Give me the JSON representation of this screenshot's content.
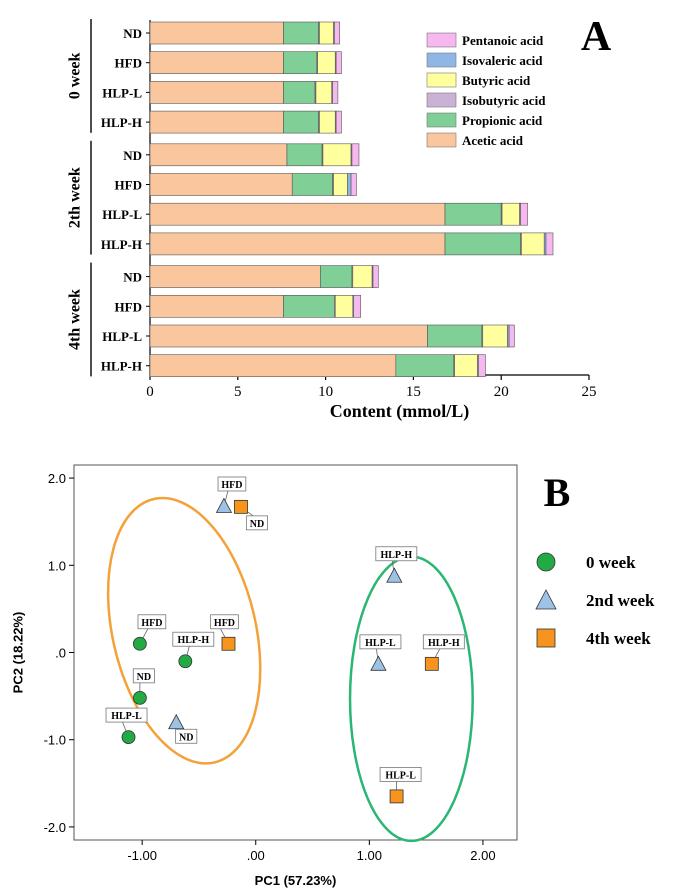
{
  "chart_data": [
    {
      "type": "bar",
      "panel_label": "A",
      "orientation": "horizontal",
      "stacked": true,
      "xlabel": "Content (mmol/L)",
      "xlim": [
        0,
        25
      ],
      "xticks": [
        0,
        5,
        10,
        15,
        20,
        25
      ],
      "groups": [
        {
          "label": "0 week",
          "categories": [
            "ND",
            "HFD",
            "HLP-L",
            "HLP-H"
          ]
        },
        {
          "label": "2th week",
          "categories": [
            "ND",
            "HFD",
            "HLP-L",
            "HLP-H"
          ]
        },
        {
          "label": "4th week",
          "categories": [
            "ND",
            "HFD",
            "HLP-L",
            "HLP-H"
          ]
        }
      ],
      "legend": [
        "Pentanoic acid",
        "Isovaleric acid",
        "Butyric acid",
        "Isobutyric acid",
        "Propionic acid",
        "Acetic acid"
      ],
      "legend_position": "top-right",
      "series": [
        {
          "name": "Acetic acid",
          "color": "#F9C69D",
          "values": [
            7.6,
            7.6,
            7.6,
            7.6,
            7.8,
            8.1,
            16.8,
            16.8,
            9.7,
            7.6,
            15.8,
            14.0
          ]
        },
        {
          "name": "Propionic acid",
          "color": "#7FCF97",
          "values": [
            2.0,
            1.9,
            1.8,
            2.0,
            2.0,
            2.3,
            3.2,
            4.3,
            1.8,
            2.9,
            3.1,
            3.3
          ]
        },
        {
          "name": "Isobutyric acid",
          "color": "#C9B2D6",
          "values": [
            0.05,
            0.05,
            0.05,
            0.05,
            0.05,
            0.05,
            0.05,
            0.05,
            0.05,
            0.05,
            0.05,
            0.05
          ]
        },
        {
          "name": "Butyric acid",
          "color": "#FFFF9E",
          "values": [
            0.8,
            1.0,
            0.9,
            0.9,
            1.6,
            0.8,
            1.0,
            1.3,
            1.1,
            1.0,
            1.4,
            1.3
          ]
        },
        {
          "name": "Isovaleric acid",
          "color": "#8FB7E6",
          "values": [
            0.05,
            0.05,
            0.05,
            0.05,
            0.05,
            0.2,
            0.05,
            0.1,
            0.05,
            0.05,
            0.1,
            0.05
          ]
        },
        {
          "name": "Pentanoic acid",
          "color": "#F6B8EE",
          "values": [
            0.3,
            0.3,
            0.3,
            0.3,
            0.4,
            0.3,
            0.4,
            0.4,
            0.3,
            0.4,
            0.3,
            0.4
          ]
        }
      ]
    },
    {
      "type": "scatter",
      "panel_label": "B",
      "xlabel": "PC1 (57.23%)",
      "ylabel": "PC2 (18.22%)",
      "xlim": [
        -1.6,
        2.3
      ],
      "ylim": [
        -2.15,
        2.15
      ],
      "xticks": [
        -1.0,
        0.0,
        1.0,
        2.0
      ],
      "xtick_labels": [
        "-1.00",
        ".00",
        "1.00",
        "2.00"
      ],
      "yticks": [
        2.0,
        1.0,
        0.0,
        -1.0,
        -2.0
      ],
      "ytick_labels": [
        "2.0",
        "1.0",
        ".0",
        "-1.0",
        "-2.0"
      ],
      "legend_position": "right",
      "series": [
        {
          "name": "0 week",
          "marker": "circle",
          "color": "#22AA44",
          "points": [
            {
              "label": "HFD",
              "x": -1.02,
              "y": 0.1
            },
            {
              "label": "HLP-H",
              "x": -0.62,
              "y": -0.1
            },
            {
              "label": "ND",
              "x": -1.02,
              "y": -0.52
            },
            {
              "label": "HLP-L",
              "x": -1.12,
              "y": -0.97
            }
          ]
        },
        {
          "name": "2nd week",
          "marker": "triangle",
          "color": "#9CC3E4",
          "points": [
            {
              "label": "HFD",
              "x": -0.28,
              "y": 1.68
            },
            {
              "label": "ND",
              "x": -0.7,
              "y": -0.8
            },
            {
              "label": "HLP-H",
              "x": 1.22,
              "y": 0.88
            },
            {
              "label": "HLP-L",
              "x": 1.08,
              "y": -0.13
            }
          ]
        },
        {
          "name": "4th week",
          "marker": "square",
          "color": "#F7941D",
          "points": [
            {
              "label": "ND",
              "x": -0.13,
              "y": 1.67
            },
            {
              "label": "HFD",
              "x": -0.24,
              "y": 0.1
            },
            {
              "label": "HLP-H",
              "x": 1.55,
              "y": -0.13
            },
            {
              "label": "HLP-L",
              "x": 1.24,
              "y": -1.65
            }
          ]
        }
      ],
      "ellipses": [
        {
          "color": "#F4A13A",
          "cx": -0.63,
          "cy": 0.25,
          "rx": 0.63,
          "ry": 1.55,
          "rotation_deg": -13
        },
        {
          "color": "#2BB673",
          "cx": 1.37,
          "cy": -0.53,
          "rx": 0.54,
          "ry": 1.63,
          "rotation_deg": 0
        }
      ]
    }
  ]
}
